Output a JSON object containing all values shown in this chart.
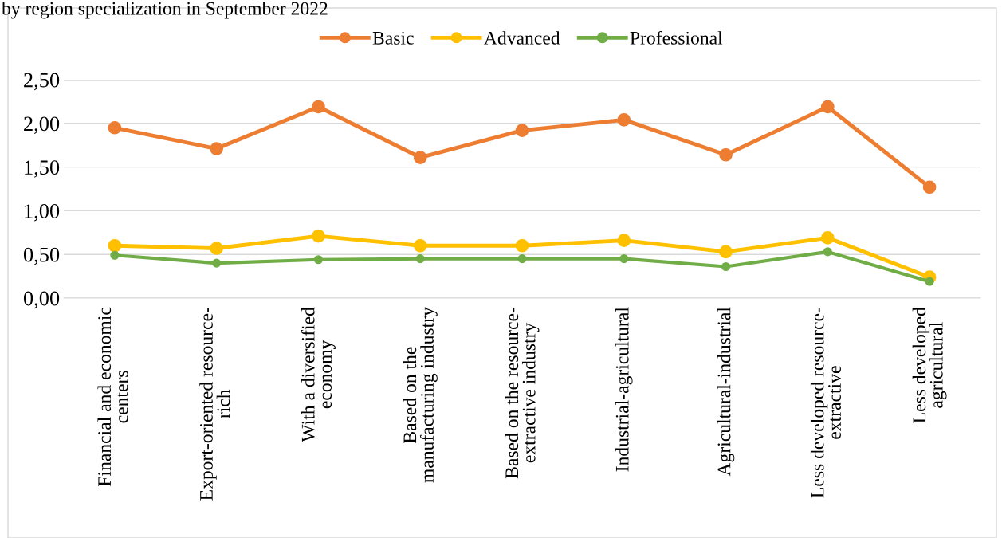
{
  "chart_data": {
    "type": "line",
    "title": "by region specialization in September 2022",
    "categories": [
      "Financial and economic\ncenters",
      "Export-oriented resource-\nrich",
      "With a diversified\neconomy",
      "Based on the\nmanufacturing industry",
      "Based on the resource-\nextractive industry",
      "Industrial-agricultural",
      "Agricultural-industrial",
      "Less developed resource-\nextractive",
      "Less developed\nagricultural"
    ],
    "series": [
      {
        "name": "Basic",
        "color": "#ed7d31",
        "values": [
          1.95,
          1.71,
          2.19,
          1.61,
          1.92,
          2.04,
          1.64,
          2.19,
          1.27
        ]
      },
      {
        "name": "Advanced",
        "color": "#ffc000",
        "values": [
          0.6,
          0.57,
          0.71,
          0.6,
          0.6,
          0.66,
          0.53,
          0.69,
          0.24
        ]
      },
      {
        "name": "Professional",
        "color": "#70ad47",
        "values": [
          0.49,
          0.4,
          0.44,
          0.45,
          0.45,
          0.45,
          0.36,
          0.53,
          0.19
        ]
      }
    ],
    "ylim": [
      0,
      2.5
    ],
    "yticks": [
      {
        "value": 0,
        "label": "0,00"
      },
      {
        "value": 0.5,
        "label": "0,50"
      },
      {
        "value": 1,
        "label": "1,00"
      },
      {
        "value": 1.5,
        "label": "1,50"
      },
      {
        "value": 2,
        "label": "2,00"
      },
      {
        "value": 2.5,
        "label": "2,50"
      }
    ],
    "grid": "y",
    "legend": "top",
    "marker": "circle",
    "line_style": "solid"
  }
}
